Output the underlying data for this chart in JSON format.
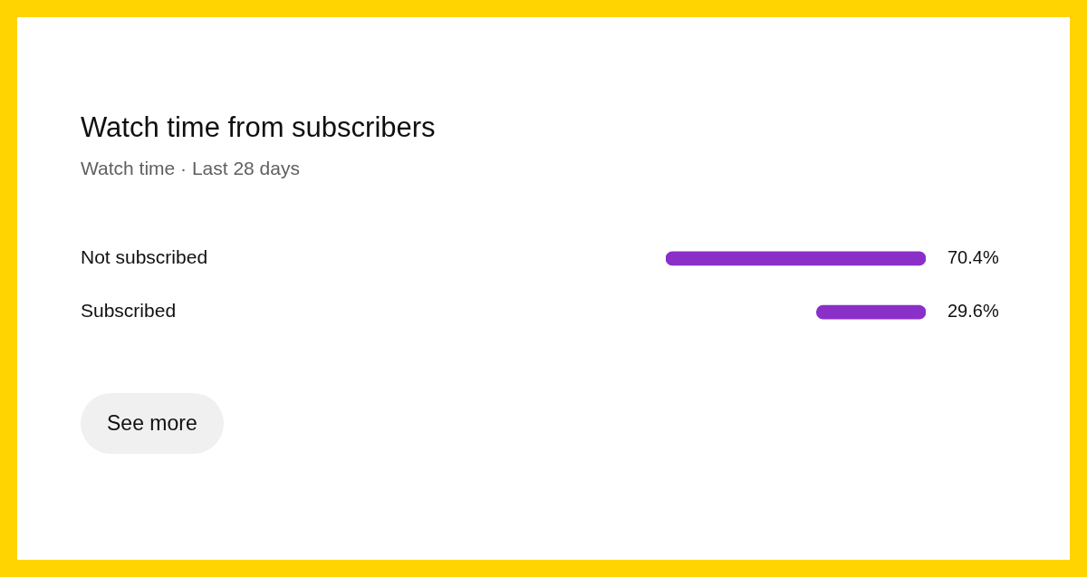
{
  "chart_data": {
    "type": "bar",
    "orientation": "horizontal",
    "title": "Watch time from subscribers",
    "subtitle": "Watch time · Last 28 days",
    "categories": [
      "Not subscribed",
      "Subscribed"
    ],
    "values": [
      70.4,
      29.6
    ],
    "color": "#8b2fc9",
    "value_labels": [
      "70.4%",
      "29.6%"
    ],
    "tick_labels": "y",
    "annotations": [
      "See more"
    ]
  }
}
